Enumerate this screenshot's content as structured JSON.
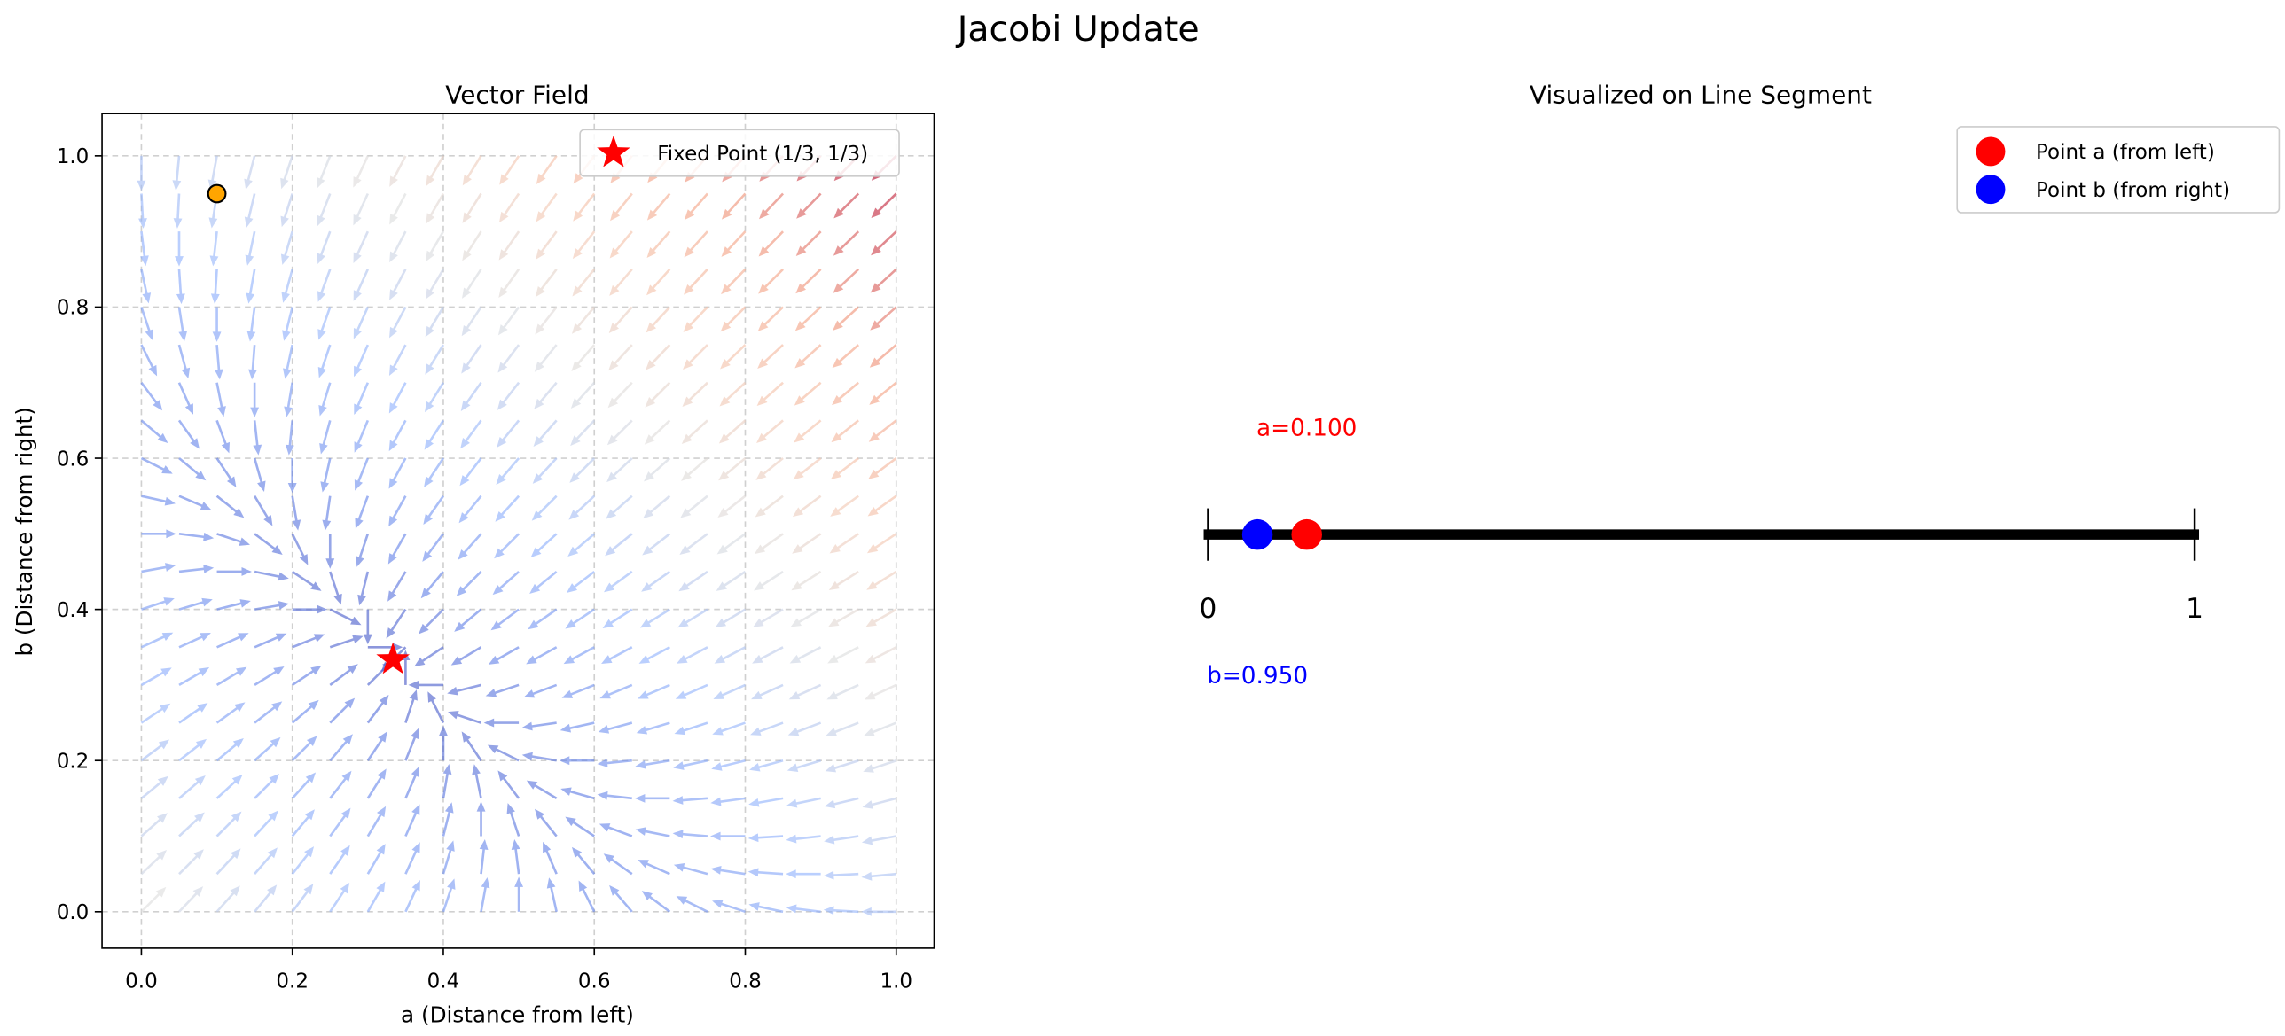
{
  "figure": {
    "suptitle": "Jacobi Update"
  },
  "chart_data": [
    {
      "type": "quiver",
      "title": "Vector Field",
      "xlabel": "a (Distance from left)",
      "ylabel": "b (Distance from right)",
      "xlim": [
        -0.05,
        1.05
      ],
      "ylim": [
        -0.05,
        1.05
      ],
      "xticks": [
        "0.0",
        "0.2",
        "0.4",
        "0.6",
        "0.8",
        "1.0"
      ],
      "yticks": [
        "0.0",
        "0.2",
        "0.4",
        "0.6",
        "0.8",
        "1.0"
      ],
      "grid": true,
      "grid_style": "dashed",
      "field": {
        "grid_start": 0,
        "grid_stop": 1,
        "grid_step": 0.05,
        "u": "(1-b)/2 - a",
        "v": "(1-a)/2 - b",
        "arrows_normalized": true,
        "colormap": "coolwarm by magnitude"
      },
      "fixed_point": {
        "a": 0.3333,
        "b": 0.3333,
        "marker": "star",
        "color": "#ff0000"
      },
      "current_point": {
        "a": 0.1,
        "b": 0.95,
        "color": "#ffa500"
      },
      "legend": {
        "placement": "upper-right",
        "entries": [
          "Fixed Point (1/3, 1/3)"
        ]
      }
    },
    {
      "type": "line-segment",
      "title": "Visualized on Line Segment",
      "xlim": [
        0,
        1
      ],
      "tick_labels": [
        "0",
        "1"
      ],
      "points": [
        {
          "name": "Point a (from left)",
          "position": 0.1,
          "color": "#ff0000",
          "label": "a=0.100"
        },
        {
          "name": "Point b (from right)",
          "position": 0.05,
          "color": "#0000ff",
          "label": "b=0.950"
        }
      ],
      "legend": {
        "placement": "upper-right",
        "entries": [
          "Point a (from left)",
          "Point b (from right)"
        ]
      }
    }
  ]
}
